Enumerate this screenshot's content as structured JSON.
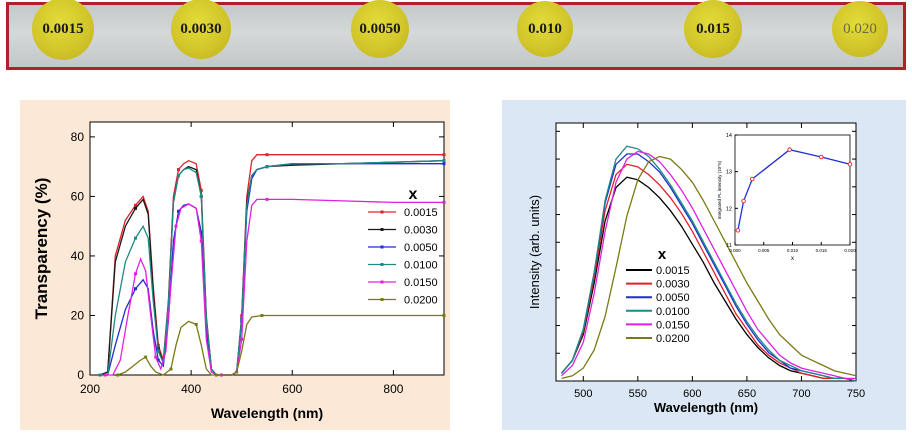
{
  "samples": [
    {
      "label": "0.0015",
      "color": "#d6cc2c"
    },
    {
      "label": "0.0030",
      "color": "#d6cc2c"
    },
    {
      "label": "0.0050",
      "color": "#d6cc2c"
    },
    {
      "label": "0.010",
      "color": "#d6cc2c"
    },
    {
      "label": "0.015",
      "color": "#d6cc2c"
    },
    {
      "label": "0.020",
      "color": "#d6cc2c"
    }
  ],
  "chart_data": [
    {
      "type": "line",
      "title": "",
      "xlabel": "Wavelength (nm)",
      "ylabel": "Transparency (%)",
      "xlim": [
        200,
        900
      ],
      "ylim": [
        0,
        85
      ],
      "xticks": [
        200,
        400,
        600,
        800
      ],
      "yticks": [
        0,
        20,
        40,
        60,
        80
      ],
      "legend_title": "x",
      "legend_position": "right",
      "series": [
        {
          "name": "0.0015",
          "color": "#e0202a",
          "x": [
            220,
            235,
            250,
            270,
            290,
            305,
            315,
            325,
            335,
            345,
            355,
            365,
            375,
            385,
            395,
            410,
            420,
            430,
            440,
            450,
            460,
            470,
            480,
            490,
            500,
            510,
            520,
            530,
            550,
            600,
            700,
            800,
            900
          ],
          "y": [
            0,
            1,
            40,
            52,
            57,
            60,
            55,
            30,
            10,
            5,
            25,
            60,
            69,
            71,
            72,
            71,
            62,
            20,
            2,
            0,
            0,
            0,
            0,
            1,
            20,
            60,
            72,
            74,
            74,
            74,
            74,
            74,
            74
          ]
        },
        {
          "name": "0.0030",
          "color": "#1a1a1a",
          "x": [
            220,
            235,
            250,
            270,
            290,
            305,
            315,
            325,
            335,
            345,
            355,
            365,
            375,
            385,
            395,
            410,
            420,
            430,
            440,
            450,
            460,
            470,
            480,
            490,
            500,
            510,
            520,
            530,
            550,
            600,
            700,
            800,
            900
          ],
          "y": [
            0,
            1,
            38,
            50,
            56,
            59,
            54,
            28,
            9,
            4,
            24,
            58,
            67,
            69,
            70,
            69,
            60,
            19,
            2,
            0,
            0,
            0,
            0,
            1,
            19,
            58,
            67,
            69,
            70,
            70.5,
            71,
            71.5,
            72
          ]
        },
        {
          "name": "0.0050",
          "color": "#1f2fd0",
          "x": [
            220,
            235,
            250,
            270,
            290,
            305,
            315,
            325,
            335,
            345,
            355,
            365,
            375,
            385,
            395,
            410,
            420,
            430,
            440,
            450,
            460,
            470,
            480,
            490,
            500,
            510,
            520,
            530,
            550,
            600,
            700,
            800,
            900
          ],
          "y": [
            0,
            0,
            10,
            22,
            29,
            32,
            29,
            15,
            5,
            3,
            18,
            45,
            55,
            57,
            57.5,
            56,
            48,
            15,
            1,
            0,
            0,
            0,
            0,
            1,
            18,
            55,
            66,
            69,
            70,
            71,
            71,
            71,
            71
          ]
        },
        {
          "name": "0.0100",
          "color": "#1e8a86",
          "x": [
            220,
            235,
            250,
            270,
            290,
            305,
            315,
            325,
            335,
            345,
            355,
            365,
            375,
            385,
            395,
            410,
            420,
            430,
            440,
            450,
            460,
            470,
            480,
            490,
            500,
            510,
            520,
            530,
            550,
            600,
            700,
            800,
            900
          ],
          "y": [
            0,
            0,
            20,
            38,
            46,
            50,
            46,
            25,
            8,
            4,
            24,
            58,
            67,
            69,
            69.5,
            68,
            60,
            19,
            2,
            0,
            0,
            0,
            0,
            1,
            19,
            57,
            67,
            69,
            70,
            71,
            71,
            71.5,
            72
          ]
        },
        {
          "name": "0.0150",
          "color": "#e020e0",
          "x": [
            230,
            245,
            260,
            275,
            290,
            300,
            310,
            320,
            330,
            340,
            350,
            360,
            370,
            380,
            395,
            410,
            420,
            430,
            440,
            450,
            460,
            470,
            480,
            490,
            500,
            510,
            520,
            530,
            550,
            600,
            700,
            800,
            900
          ],
          "y": [
            0,
            0,
            5,
            20,
            34,
            39,
            35,
            20,
            6,
            2,
            8,
            30,
            50,
            56,
            57.5,
            56,
            45,
            12,
            1,
            0,
            0,
            0,
            0,
            1,
            12,
            45,
            57,
            59,
            59,
            59,
            58.5,
            58,
            58
          ]
        },
        {
          "name": "0.0200",
          "color": "#7a7a14",
          "x": [
            255,
            270,
            285,
            300,
            310,
            320,
            330,
            345,
            360,
            370,
            380,
            395,
            410,
            420,
            430,
            440,
            450,
            460,
            470,
            480,
            490,
            500,
            510,
            520,
            540,
            600,
            700,
            800,
            900
          ],
          "y": [
            0,
            1,
            3,
            5,
            6,
            3,
            1,
            0,
            2,
            10,
            16,
            18,
            17,
            10,
            2,
            0,
            0,
            0,
            0,
            0,
            1,
            8,
            17,
            19.5,
            20,
            20,
            20,
            20,
            20
          ]
        }
      ]
    },
    {
      "type": "line",
      "title": "",
      "xlabel": "Wavelength (nm)",
      "ylabel": "Intensity (arb. units)",
      "xlim": [
        475,
        750
      ],
      "ylim": [
        0,
        100
      ],
      "xticks": [
        500,
        550,
        600,
        650,
        700,
        750
      ],
      "legend_title": "x",
      "legend_position": "bottom-left",
      "series": [
        {
          "name": "0.0015",
          "color": "#000000",
          "x": [
            480,
            490,
            500,
            510,
            520,
            530,
            540,
            550,
            560,
            570,
            580,
            590,
            600,
            610,
            620,
            630,
            640,
            650,
            660,
            670,
            680,
            690,
            700,
            710,
            720,
            730,
            740,
            750
          ],
          "y": [
            3,
            8,
            18,
            38,
            62,
            75,
            79,
            78,
            75,
            71,
            66,
            60,
            53,
            46,
            38,
            31,
            24,
            18,
            13,
            9,
            6,
            4,
            3,
            2,
            1,
            1,
            1,
            0
          ]
        },
        {
          "name": "0.0030",
          "color": "#e0202a",
          "x": [
            480,
            490,
            500,
            510,
            520,
            530,
            540,
            550,
            560,
            570,
            580,
            590,
            600,
            610,
            620,
            630,
            640,
            650,
            660,
            670,
            680,
            690,
            700,
            710,
            720,
            730,
            740,
            750
          ],
          "y": [
            3,
            8,
            19,
            40,
            66,
            80,
            84,
            83,
            80,
            76,
            71,
            65,
            58,
            50,
            42,
            34,
            26,
            20,
            14,
            10,
            7,
            5,
            3,
            2,
            1,
            1,
            1,
            0
          ]
        },
        {
          "name": "0.0050",
          "color": "#1f2fd0",
          "x": [
            480,
            490,
            500,
            510,
            520,
            530,
            540,
            550,
            560,
            570,
            580,
            590,
            600,
            610,
            620,
            630,
            640,
            650,
            660,
            670,
            680,
            690,
            700,
            710,
            720,
            730,
            740,
            750
          ],
          "y": [
            3,
            8,
            20,
            42,
            69,
            84,
            88,
            88,
            85,
            81,
            75,
            68,
            61,
            53,
            45,
            37,
            29,
            22,
            16,
            11,
            8,
            5,
            4,
            3,
            2,
            1,
            1,
            0
          ]
        },
        {
          "name": "0.0100",
          "color": "#1e8a86",
          "x": [
            480,
            490,
            500,
            510,
            520,
            530,
            540,
            550,
            560,
            570,
            580,
            590,
            600,
            610,
            620,
            630,
            640,
            650,
            660,
            670,
            680,
            690,
            700,
            710,
            720,
            730,
            740,
            750
          ],
          "y": [
            3,
            8,
            20,
            42,
            70,
            86,
            91,
            90,
            87,
            82,
            76,
            69,
            62,
            54,
            46,
            38,
            30,
            23,
            17,
            12,
            8,
            6,
            4,
            3,
            2,
            1,
            1,
            0
          ]
        },
        {
          "name": "0.0150",
          "color": "#e020e0",
          "x": [
            480,
            490,
            500,
            510,
            520,
            530,
            540,
            550,
            560,
            570,
            580,
            590,
            600,
            610,
            620,
            630,
            640,
            650,
            660,
            670,
            680,
            690,
            700,
            710,
            720,
            730,
            740,
            750
          ],
          "y": [
            2,
            6,
            15,
            34,
            58,
            77,
            86,
            89,
            88,
            85,
            80,
            74,
            67,
            59,
            51,
            43,
            35,
            27,
            20,
            15,
            10,
            7,
            5,
            4,
            3,
            2,
            1,
            1
          ]
        },
        {
          "name": "0.0200",
          "color": "#7a7a14",
          "x": [
            480,
            490,
            500,
            510,
            520,
            530,
            540,
            550,
            560,
            570,
            580,
            590,
            600,
            610,
            620,
            630,
            640,
            650,
            660,
            670,
            680,
            690,
            700,
            710,
            720,
            730,
            740,
            750
          ],
          "y": [
            1,
            2,
            5,
            12,
            25,
            44,
            64,
            78,
            85,
            87,
            86,
            82,
            77,
            70,
            62,
            54,
            46,
            38,
            31,
            24,
            18,
            14,
            10,
            8,
            6,
            4,
            3,
            2
          ]
        }
      ]
    },
    {
      "type": "scatter",
      "title": "",
      "xlabel": "x",
      "ylabel": "Integrated PL intensity (10^5)",
      "xlim": [
        0,
        0.02
      ],
      "ylim": [
        11,
        14
      ],
      "xticks": [
        "0.000",
        "0.005",
        "0.010",
        "0.015",
        "0.020"
      ],
      "yticks": [
        11,
        12,
        13,
        14
      ],
      "series": [
        {
          "name": "",
          "color": "#1f2fd0",
          "marker_color": "#e0202a",
          "x": [
            0.0005,
            0.0015,
            0.003,
            0.0095,
            0.015,
            0.02
          ],
          "y": [
            11.4,
            12.2,
            12.8,
            13.6,
            13.4,
            13.2
          ]
        }
      ]
    }
  ]
}
